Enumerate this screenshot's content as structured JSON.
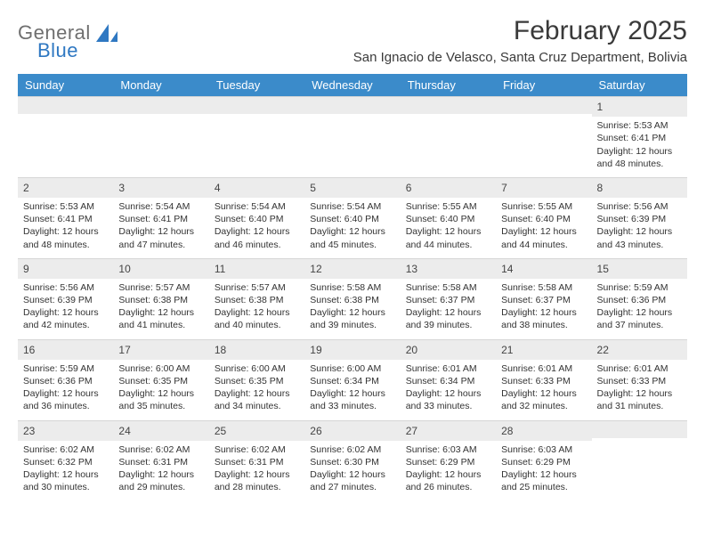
{
  "brand": {
    "word1": "General",
    "word2": "Blue",
    "logo_fill": "#2f78c2"
  },
  "header": {
    "title": "February 2025",
    "location": "San Ignacio de Velasco, Santa Cruz Department, Bolivia"
  },
  "colors": {
    "header_bg": "#3b8bca",
    "header_text": "#ffffff",
    "daynum_bg": "#ececec",
    "body_text": "#333333"
  },
  "typography": {
    "title_fontsize": 30,
    "location_fontsize": 15,
    "weekday_fontsize": 13,
    "daynum_fontsize": 12,
    "body_fontsize": 10.5
  },
  "weekdays": [
    "Sunday",
    "Monday",
    "Tuesday",
    "Wednesday",
    "Thursday",
    "Friday",
    "Saturday"
  ],
  "weeks": [
    [
      {
        "empty": true
      },
      {
        "empty": true
      },
      {
        "empty": true
      },
      {
        "empty": true
      },
      {
        "empty": true
      },
      {
        "empty": true
      },
      {
        "n": "1",
        "sunrise": "Sunrise: 5:53 AM",
        "sunset": "Sunset: 6:41 PM",
        "daylight": "Daylight: 12 hours and 48 minutes."
      }
    ],
    [
      {
        "n": "2",
        "sunrise": "Sunrise: 5:53 AM",
        "sunset": "Sunset: 6:41 PM",
        "daylight": "Daylight: 12 hours and 48 minutes."
      },
      {
        "n": "3",
        "sunrise": "Sunrise: 5:54 AM",
        "sunset": "Sunset: 6:41 PM",
        "daylight": "Daylight: 12 hours and 47 minutes."
      },
      {
        "n": "4",
        "sunrise": "Sunrise: 5:54 AM",
        "sunset": "Sunset: 6:40 PM",
        "daylight": "Daylight: 12 hours and 46 minutes."
      },
      {
        "n": "5",
        "sunrise": "Sunrise: 5:54 AM",
        "sunset": "Sunset: 6:40 PM",
        "daylight": "Daylight: 12 hours and 45 minutes."
      },
      {
        "n": "6",
        "sunrise": "Sunrise: 5:55 AM",
        "sunset": "Sunset: 6:40 PM",
        "daylight": "Daylight: 12 hours and 44 minutes."
      },
      {
        "n": "7",
        "sunrise": "Sunrise: 5:55 AM",
        "sunset": "Sunset: 6:40 PM",
        "daylight": "Daylight: 12 hours and 44 minutes."
      },
      {
        "n": "8",
        "sunrise": "Sunrise: 5:56 AM",
        "sunset": "Sunset: 6:39 PM",
        "daylight": "Daylight: 12 hours and 43 minutes."
      }
    ],
    [
      {
        "n": "9",
        "sunrise": "Sunrise: 5:56 AM",
        "sunset": "Sunset: 6:39 PM",
        "daylight": "Daylight: 12 hours and 42 minutes."
      },
      {
        "n": "10",
        "sunrise": "Sunrise: 5:57 AM",
        "sunset": "Sunset: 6:38 PM",
        "daylight": "Daylight: 12 hours and 41 minutes."
      },
      {
        "n": "11",
        "sunrise": "Sunrise: 5:57 AM",
        "sunset": "Sunset: 6:38 PM",
        "daylight": "Daylight: 12 hours and 40 minutes."
      },
      {
        "n": "12",
        "sunrise": "Sunrise: 5:58 AM",
        "sunset": "Sunset: 6:38 PM",
        "daylight": "Daylight: 12 hours and 39 minutes."
      },
      {
        "n": "13",
        "sunrise": "Sunrise: 5:58 AM",
        "sunset": "Sunset: 6:37 PM",
        "daylight": "Daylight: 12 hours and 39 minutes."
      },
      {
        "n": "14",
        "sunrise": "Sunrise: 5:58 AM",
        "sunset": "Sunset: 6:37 PM",
        "daylight": "Daylight: 12 hours and 38 minutes."
      },
      {
        "n": "15",
        "sunrise": "Sunrise: 5:59 AM",
        "sunset": "Sunset: 6:36 PM",
        "daylight": "Daylight: 12 hours and 37 minutes."
      }
    ],
    [
      {
        "n": "16",
        "sunrise": "Sunrise: 5:59 AM",
        "sunset": "Sunset: 6:36 PM",
        "daylight": "Daylight: 12 hours and 36 minutes."
      },
      {
        "n": "17",
        "sunrise": "Sunrise: 6:00 AM",
        "sunset": "Sunset: 6:35 PM",
        "daylight": "Daylight: 12 hours and 35 minutes."
      },
      {
        "n": "18",
        "sunrise": "Sunrise: 6:00 AM",
        "sunset": "Sunset: 6:35 PM",
        "daylight": "Daylight: 12 hours and 34 minutes."
      },
      {
        "n": "19",
        "sunrise": "Sunrise: 6:00 AM",
        "sunset": "Sunset: 6:34 PM",
        "daylight": "Daylight: 12 hours and 33 minutes."
      },
      {
        "n": "20",
        "sunrise": "Sunrise: 6:01 AM",
        "sunset": "Sunset: 6:34 PM",
        "daylight": "Daylight: 12 hours and 33 minutes."
      },
      {
        "n": "21",
        "sunrise": "Sunrise: 6:01 AM",
        "sunset": "Sunset: 6:33 PM",
        "daylight": "Daylight: 12 hours and 32 minutes."
      },
      {
        "n": "22",
        "sunrise": "Sunrise: 6:01 AM",
        "sunset": "Sunset: 6:33 PM",
        "daylight": "Daylight: 12 hours and 31 minutes."
      }
    ],
    [
      {
        "n": "23",
        "sunrise": "Sunrise: 6:02 AM",
        "sunset": "Sunset: 6:32 PM",
        "daylight": "Daylight: 12 hours and 30 minutes."
      },
      {
        "n": "24",
        "sunrise": "Sunrise: 6:02 AM",
        "sunset": "Sunset: 6:31 PM",
        "daylight": "Daylight: 12 hours and 29 minutes."
      },
      {
        "n": "25",
        "sunrise": "Sunrise: 6:02 AM",
        "sunset": "Sunset: 6:31 PM",
        "daylight": "Daylight: 12 hours and 28 minutes."
      },
      {
        "n": "26",
        "sunrise": "Sunrise: 6:02 AM",
        "sunset": "Sunset: 6:30 PM",
        "daylight": "Daylight: 12 hours and 27 minutes."
      },
      {
        "n": "27",
        "sunrise": "Sunrise: 6:03 AM",
        "sunset": "Sunset: 6:29 PM",
        "daylight": "Daylight: 12 hours and 26 minutes."
      },
      {
        "n": "28",
        "sunrise": "Sunrise: 6:03 AM",
        "sunset": "Sunset: 6:29 PM",
        "daylight": "Daylight: 12 hours and 25 minutes."
      },
      {
        "empty": true
      }
    ]
  ]
}
